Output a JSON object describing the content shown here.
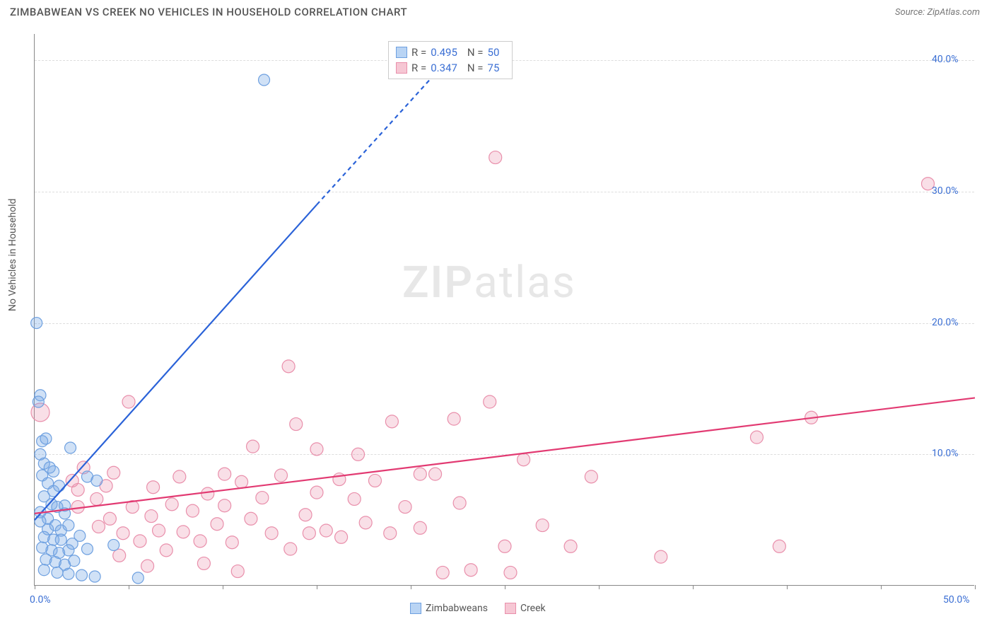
{
  "header": {
    "title": "ZIMBABWEAN VS CREEK NO VEHICLES IN HOUSEHOLD CORRELATION CHART",
    "source_prefix": "Source: ",
    "source_name": "ZipAtlas.com"
  },
  "watermark": {
    "part1": "ZIP",
    "part2": "atlas"
  },
  "chart": {
    "type": "scatter",
    "ylabel": "No Vehicles in Household",
    "xlim": [
      0,
      50
    ],
    "ylim": [
      0,
      42
    ],
    "x_ticks": [
      0,
      5,
      10,
      15,
      20,
      25,
      30,
      35,
      40,
      45,
      50
    ],
    "x_tick_labels": {
      "0": "0.0%",
      "50": "50.0%"
    },
    "y_gridlines": [
      10,
      20,
      30,
      40
    ],
    "y_tick_labels": {
      "10": "10.0%",
      "20": "20.0%",
      "30": "30.0%",
      "40": "40.0%"
    },
    "background_color": "#ffffff",
    "grid_color": "#dddddd",
    "axis_color": "#888888",
    "tick_label_color": "#3b6fd4",
    "label_fontsize": 14,
    "title_fontsize": 15
  },
  "stats_box": {
    "rows": [
      {
        "swatch_fill": "#b9d4f4",
        "swatch_border": "#6ea0e0",
        "r_label": "R =",
        "r_value": "0.495",
        "n_label": "N =",
        "n_value": "50"
      },
      {
        "swatch_fill": "#f6c7d4",
        "swatch_border": "#e98fab",
        "r_label": "R =",
        "r_value": "0.347",
        "n_label": "N =",
        "n_value": "75"
      }
    ]
  },
  "legend": {
    "items": [
      {
        "swatch_fill": "#b9d4f4",
        "swatch_border": "#6ea0e0",
        "label": "Zimbabweans"
      },
      {
        "swatch_fill": "#f6c7d4",
        "swatch_border": "#e98fab",
        "label": "Creek"
      }
    ]
  },
  "series": {
    "zimbabwean": {
      "color_fill": "rgba(120,170,230,0.35)",
      "color_stroke": "#6ea0e0",
      "marker_radius": 8,
      "trend": {
        "x1": 0,
        "y1": 5.0,
        "x2": 15,
        "y2": 29.0,
        "solid_until_x": 15,
        "dash_to_x": 21,
        "dash_to_y": 38.5,
        "stroke": "#2a62d8",
        "width": 2.2
      },
      "points": [
        {
          "x": 0.1,
          "y": 20.0
        },
        {
          "x": 0.3,
          "y": 14.5
        },
        {
          "x": 0.2,
          "y": 14.0
        },
        {
          "x": 0.4,
          "y": 11.0
        },
        {
          "x": 0.6,
          "y": 11.2
        },
        {
          "x": 0.3,
          "y": 10.0
        },
        {
          "x": 0.5,
          "y": 9.3
        },
        {
          "x": 0.8,
          "y": 9.0
        },
        {
          "x": 0.4,
          "y": 8.4
        },
        {
          "x": 1.0,
          "y": 8.7
        },
        {
          "x": 0.7,
          "y": 7.8
        },
        {
          "x": 1.0,
          "y": 7.2
        },
        {
          "x": 1.3,
          "y": 7.6
        },
        {
          "x": 0.5,
          "y": 6.8
        },
        {
          "x": 0.9,
          "y": 6.2
        },
        {
          "x": 1.2,
          "y": 6.0
        },
        {
          "x": 1.6,
          "y": 6.1
        },
        {
          "x": 0.3,
          "y": 5.6
        },
        {
          "x": 0.7,
          "y": 5.1
        },
        {
          "x": 1.6,
          "y": 5.5
        },
        {
          "x": 0.3,
          "y": 4.9
        },
        {
          "x": 0.7,
          "y": 4.3
        },
        {
          "x": 1.1,
          "y": 4.6
        },
        {
          "x": 1.4,
          "y": 4.2
        },
        {
          "x": 1.8,
          "y": 4.6
        },
        {
          "x": 0.5,
          "y": 3.7
        },
        {
          "x": 1.0,
          "y": 3.5
        },
        {
          "x": 1.4,
          "y": 3.5
        },
        {
          "x": 2.0,
          "y": 3.2
        },
        {
          "x": 2.4,
          "y": 3.8
        },
        {
          "x": 0.4,
          "y": 2.9
        },
        {
          "x": 0.9,
          "y": 2.7
        },
        {
          "x": 1.3,
          "y": 2.5
        },
        {
          "x": 1.8,
          "y": 2.7
        },
        {
          "x": 2.8,
          "y": 2.8
        },
        {
          "x": 4.2,
          "y": 3.1
        },
        {
          "x": 0.6,
          "y": 2.0
        },
        {
          "x": 1.1,
          "y": 1.8
        },
        {
          "x": 1.6,
          "y": 1.6
        },
        {
          "x": 2.1,
          "y": 1.9
        },
        {
          "x": 0.5,
          "y": 1.2
        },
        {
          "x": 1.2,
          "y": 1.0
        },
        {
          "x": 1.8,
          "y": 0.9
        },
        {
          "x": 2.5,
          "y": 0.8
        },
        {
          "x": 3.2,
          "y": 0.7
        },
        {
          "x": 5.5,
          "y": 0.6
        },
        {
          "x": 2.8,
          "y": 8.3
        },
        {
          "x": 3.3,
          "y": 8.0
        },
        {
          "x": 1.9,
          "y": 10.5
        },
        {
          "x": 12.2,
          "y": 38.5
        }
      ]
    },
    "creek": {
      "color_fill": "rgba(235,140,170,0.28)",
      "color_stroke": "#e98fab",
      "marker_radius": 9,
      "trend": {
        "x1": 0,
        "y1": 5.5,
        "x2": 50,
        "y2": 14.3,
        "stroke": "#e23a72",
        "width": 2.2
      },
      "points": [
        {
          "x": 0.3,
          "y": 13.2,
          "r": 13
        },
        {
          "x": 2.0,
          "y": 8.0
        },
        {
          "x": 2.3,
          "y": 7.3
        },
        {
          "x": 2.3,
          "y": 6.0
        },
        {
          "x": 2.6,
          "y": 9.0
        },
        {
          "x": 3.3,
          "y": 6.6
        },
        {
          "x": 3.4,
          "y": 4.5
        },
        {
          "x": 3.8,
          "y": 7.6
        },
        {
          "x": 4.0,
          "y": 5.1
        },
        {
          "x": 4.2,
          "y": 8.6
        },
        {
          "x": 4.7,
          "y": 4.0
        },
        {
          "x": 5.0,
          "y": 14.0
        },
        {
          "x": 5.2,
          "y": 6.0
        },
        {
          "x": 5.6,
          "y": 3.4
        },
        {
          "x": 6.2,
          "y": 5.3
        },
        {
          "x": 6.3,
          "y": 7.5
        },
        {
          "x": 6.6,
          "y": 4.2
        },
        {
          "x": 7.0,
          "y": 2.7
        },
        {
          "x": 7.3,
          "y": 6.2
        },
        {
          "x": 7.7,
          "y": 8.3
        },
        {
          "x": 7.9,
          "y": 4.1
        },
        {
          "x": 8.4,
          "y": 5.7
        },
        {
          "x": 8.8,
          "y": 3.4
        },
        {
          "x": 9.2,
          "y": 7.0
        },
        {
          "x": 9.7,
          "y": 4.7
        },
        {
          "x": 10.1,
          "y": 8.5
        },
        {
          "x": 10.1,
          "y": 6.1
        },
        {
          "x": 10.5,
          "y": 3.3
        },
        {
          "x": 10.8,
          "y": 1.1
        },
        {
          "x": 11.0,
          "y": 7.9
        },
        {
          "x": 11.5,
          "y": 5.1
        },
        {
          "x": 11.6,
          "y": 10.6
        },
        {
          "x": 12.1,
          "y": 6.7
        },
        {
          "x": 12.6,
          "y": 4.0
        },
        {
          "x": 13.1,
          "y": 8.4
        },
        {
          "x": 13.5,
          "y": 16.7
        },
        {
          "x": 13.9,
          "y": 12.3
        },
        {
          "x": 14.4,
          "y": 5.4
        },
        {
          "x": 14.6,
          "y": 4.0
        },
        {
          "x": 15.0,
          "y": 7.1
        },
        {
          "x": 15.0,
          "y": 10.4
        },
        {
          "x": 15.5,
          "y": 4.2
        },
        {
          "x": 16.2,
          "y": 8.1
        },
        {
          "x": 16.3,
          "y": 3.7
        },
        {
          "x": 17.0,
          "y": 6.6
        },
        {
          "x": 17.2,
          "y": 10.0
        },
        {
          "x": 17.6,
          "y": 4.8
        },
        {
          "x": 18.1,
          "y": 8.0
        },
        {
          "x": 18.9,
          "y": 4.0
        },
        {
          "x": 19.0,
          "y": 12.5
        },
        {
          "x": 19.7,
          "y": 6.0
        },
        {
          "x": 20.5,
          "y": 8.5
        },
        {
          "x": 20.5,
          "y": 4.4
        },
        {
          "x": 21.3,
          "y": 8.5
        },
        {
          "x": 21.7,
          "y": 1.0
        },
        {
          "x": 22.3,
          "y": 12.7
        },
        {
          "x": 22.6,
          "y": 6.3
        },
        {
          "x": 23.2,
          "y": 1.2
        },
        {
          "x": 24.2,
          "y": 14.0
        },
        {
          "x": 24.5,
          "y": 32.6
        },
        {
          "x": 25.0,
          "y": 3.0
        },
        {
          "x": 25.3,
          "y": 1.0
        },
        {
          "x": 26.0,
          "y": 9.6
        },
        {
          "x": 27.0,
          "y": 4.6
        },
        {
          "x": 28.5,
          "y": 3.0
        },
        {
          "x": 29.6,
          "y": 8.3
        },
        {
          "x": 33.3,
          "y": 2.2
        },
        {
          "x": 38.4,
          "y": 11.3
        },
        {
          "x": 39.6,
          "y": 3.0
        },
        {
          "x": 41.3,
          "y": 12.8
        },
        {
          "x": 47.5,
          "y": 30.6
        },
        {
          "x": 13.6,
          "y": 2.8
        },
        {
          "x": 9.0,
          "y": 1.7
        },
        {
          "x": 6.0,
          "y": 1.5
        },
        {
          "x": 4.5,
          "y": 2.3
        }
      ]
    }
  }
}
